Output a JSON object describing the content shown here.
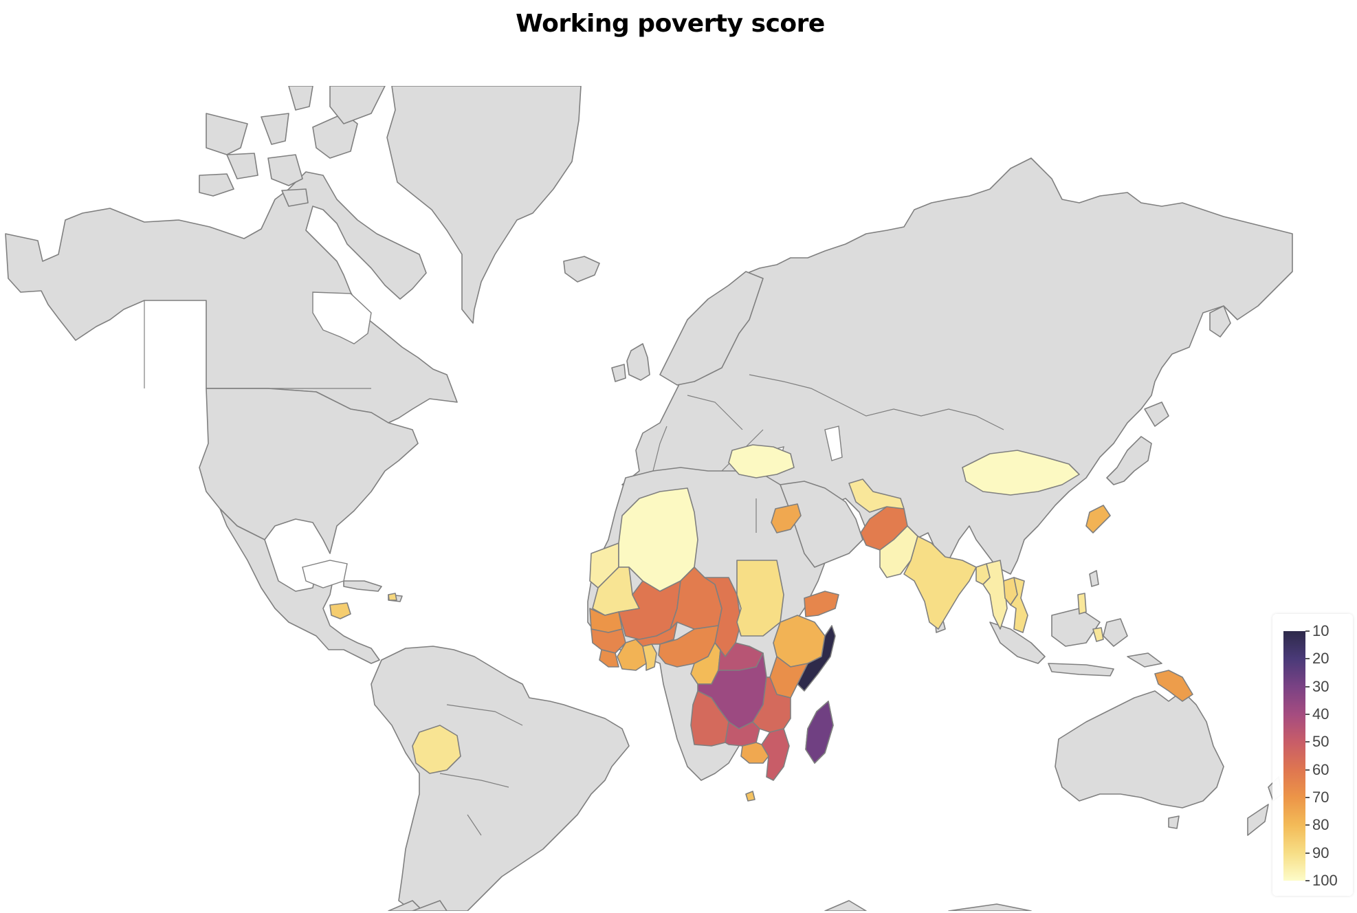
{
  "title": "Working poverty score",
  "colors": {
    "land": "#dcdcdc",
    "border": "#7f7f7f",
    "ocean": "#ffffff"
  },
  "colorbar": {
    "min": 10,
    "max": 100,
    "ticks": [
      "10",
      "20",
      "30",
      "40",
      "50",
      "60",
      "70",
      "80",
      "90",
      "100"
    ],
    "scale": [
      "#2e2a4a",
      "#4a3a78",
      "#7a4284",
      "#a54c80",
      "#c85d68",
      "#df7650",
      "#ec9548",
      "#f3bb58",
      "#f7de86",
      "#fdfcc9"
    ]
  },
  "countries": [
    {
      "name": "Western Sahara",
      "value": 95
    },
    {
      "name": "Algeria",
      "value": 99
    },
    {
      "name": "Mauritania",
      "value": 92
    },
    {
      "name": "Mali",
      "value": 60
    },
    {
      "name": "Niger",
      "value": 62
    },
    {
      "name": "Chad",
      "value": 60
    },
    {
      "name": "Sudan",
      "value": 90
    },
    {
      "name": "Senegal",
      "value": 70
    },
    {
      "name": "Guinea",
      "value": 65
    },
    {
      "name": "Sierra Leone",
      "value": 68
    },
    {
      "name": "Ivory Coast",
      "value": 78
    },
    {
      "name": "Ghana",
      "value": 85
    },
    {
      "name": "Burkina Faso",
      "value": 62
    },
    {
      "name": "Nigeria",
      "value": 66
    },
    {
      "name": "Cameroon",
      "value": 80
    },
    {
      "name": "Central African Republic",
      "value": 45
    },
    {
      "name": "Ethiopia",
      "value": 78
    },
    {
      "name": "Somalia",
      "value": 8
    },
    {
      "name": "Kenya",
      "value": 68
    },
    {
      "name": "DR Congo",
      "value": 38
    },
    {
      "name": "Angola",
      "value": 55
    },
    {
      "name": "Zambia",
      "value": 48
    },
    {
      "name": "Tanzania",
      "value": 55
    },
    {
      "name": "Mozambique",
      "value": 50
    },
    {
      "name": "Zimbabwe",
      "value": 75
    },
    {
      "name": "Madagascar",
      "value": 28
    },
    {
      "name": "Lesotho",
      "value": 82
    },
    {
      "name": "Yemen",
      "value": 65
    },
    {
      "name": "Syria",
      "value": 75
    },
    {
      "name": "Afghanistan",
      "value": 62
    },
    {
      "name": "Pakistan",
      "value": 97
    },
    {
      "name": "Uzbekistan",
      "value": 93
    },
    {
      "name": "India",
      "value": 90
    },
    {
      "name": "Bangladesh",
      "value": 92
    },
    {
      "name": "Myanmar",
      "value": 95
    },
    {
      "name": "Laos",
      "value": 88
    },
    {
      "name": "Vietnam",
      "value": 90
    },
    {
      "name": "Mongolia",
      "value": 99
    },
    {
      "name": "North Korea",
      "value": 78
    },
    {
      "name": "Ukraine",
      "value": 99
    },
    {
      "name": "Philippines",
      "value": 93
    },
    {
      "name": "Papua New Guinea",
      "value": 72
    },
    {
      "name": "Honduras",
      "value": 85
    },
    {
      "name": "Haiti",
      "value": 88
    },
    {
      "name": "Bolivia",
      "value": 92
    }
  ]
}
